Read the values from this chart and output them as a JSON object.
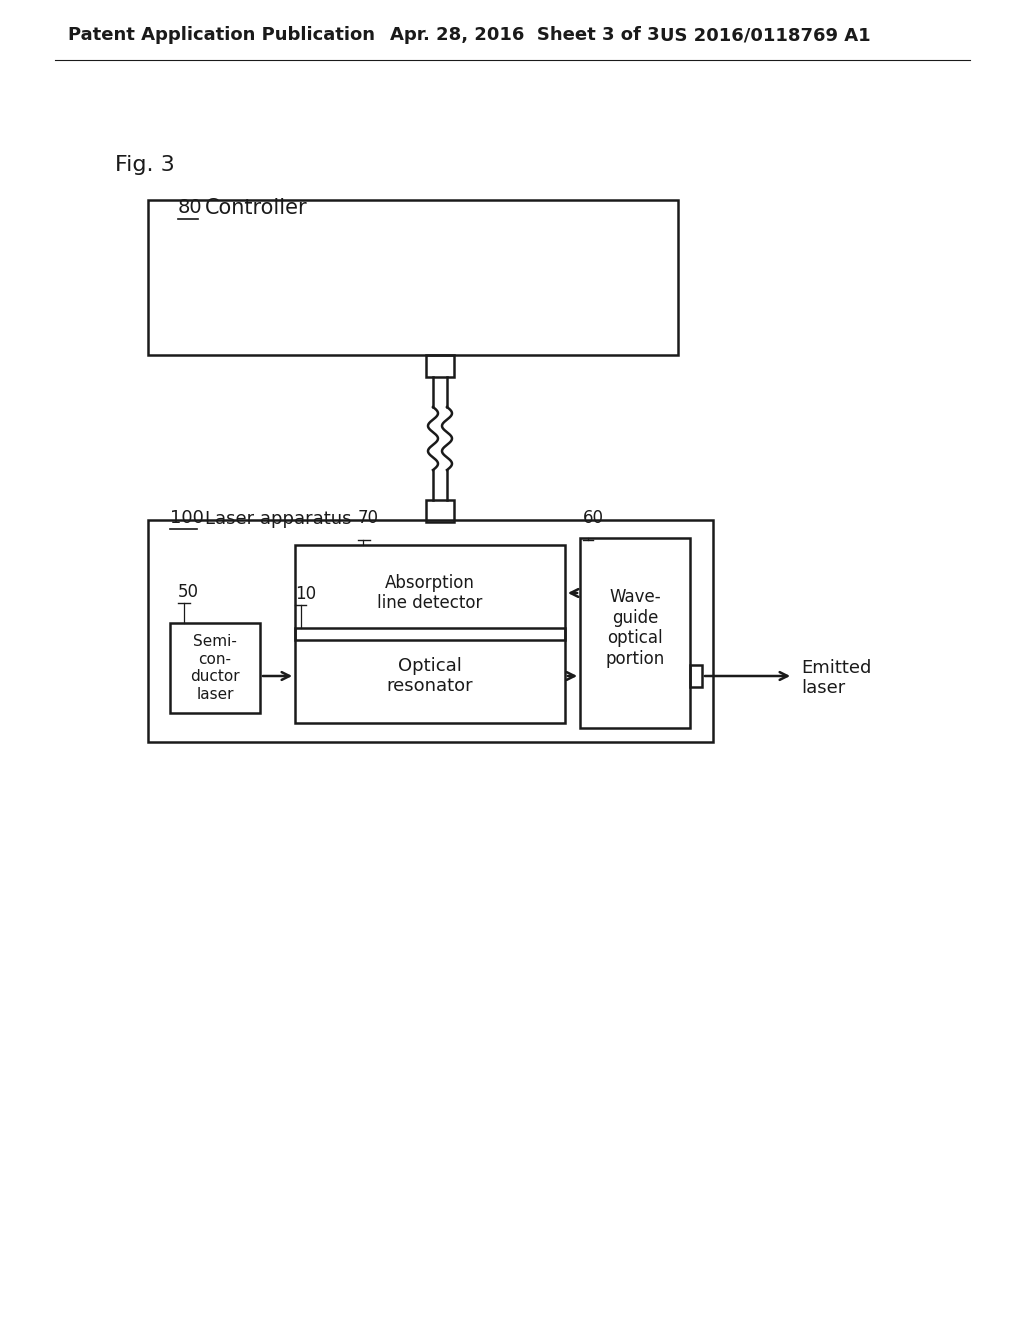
{
  "bg_color": "#ffffff",
  "text_color": "#1a1a1a",
  "header_left": "Patent Application Publication",
  "header_mid": "Apr. 28, 2016  Sheet 3 of 3",
  "header_right": "US 2016/0118769 A1",
  "fig_label": "Fig. 3",
  "controller_label": "80",
  "controller_text": "Controller",
  "laser_app_label": "100",
  "laser_app_text": "Laser apparatus",
  "absorption_label": "70",
  "absorption_text": "Absorption\nline detector",
  "waveguide_label": "60",
  "waveguide_text": "Wave-\nguide\noptical\nportion",
  "resonator_label": "10",
  "resonator_text": "Optical\nresonator",
  "semiconductor_label": "50",
  "semiconductor_text": "Semi-\ncon-\nductor\nlaser",
  "emitted_text": "Emitted\nlaser"
}
